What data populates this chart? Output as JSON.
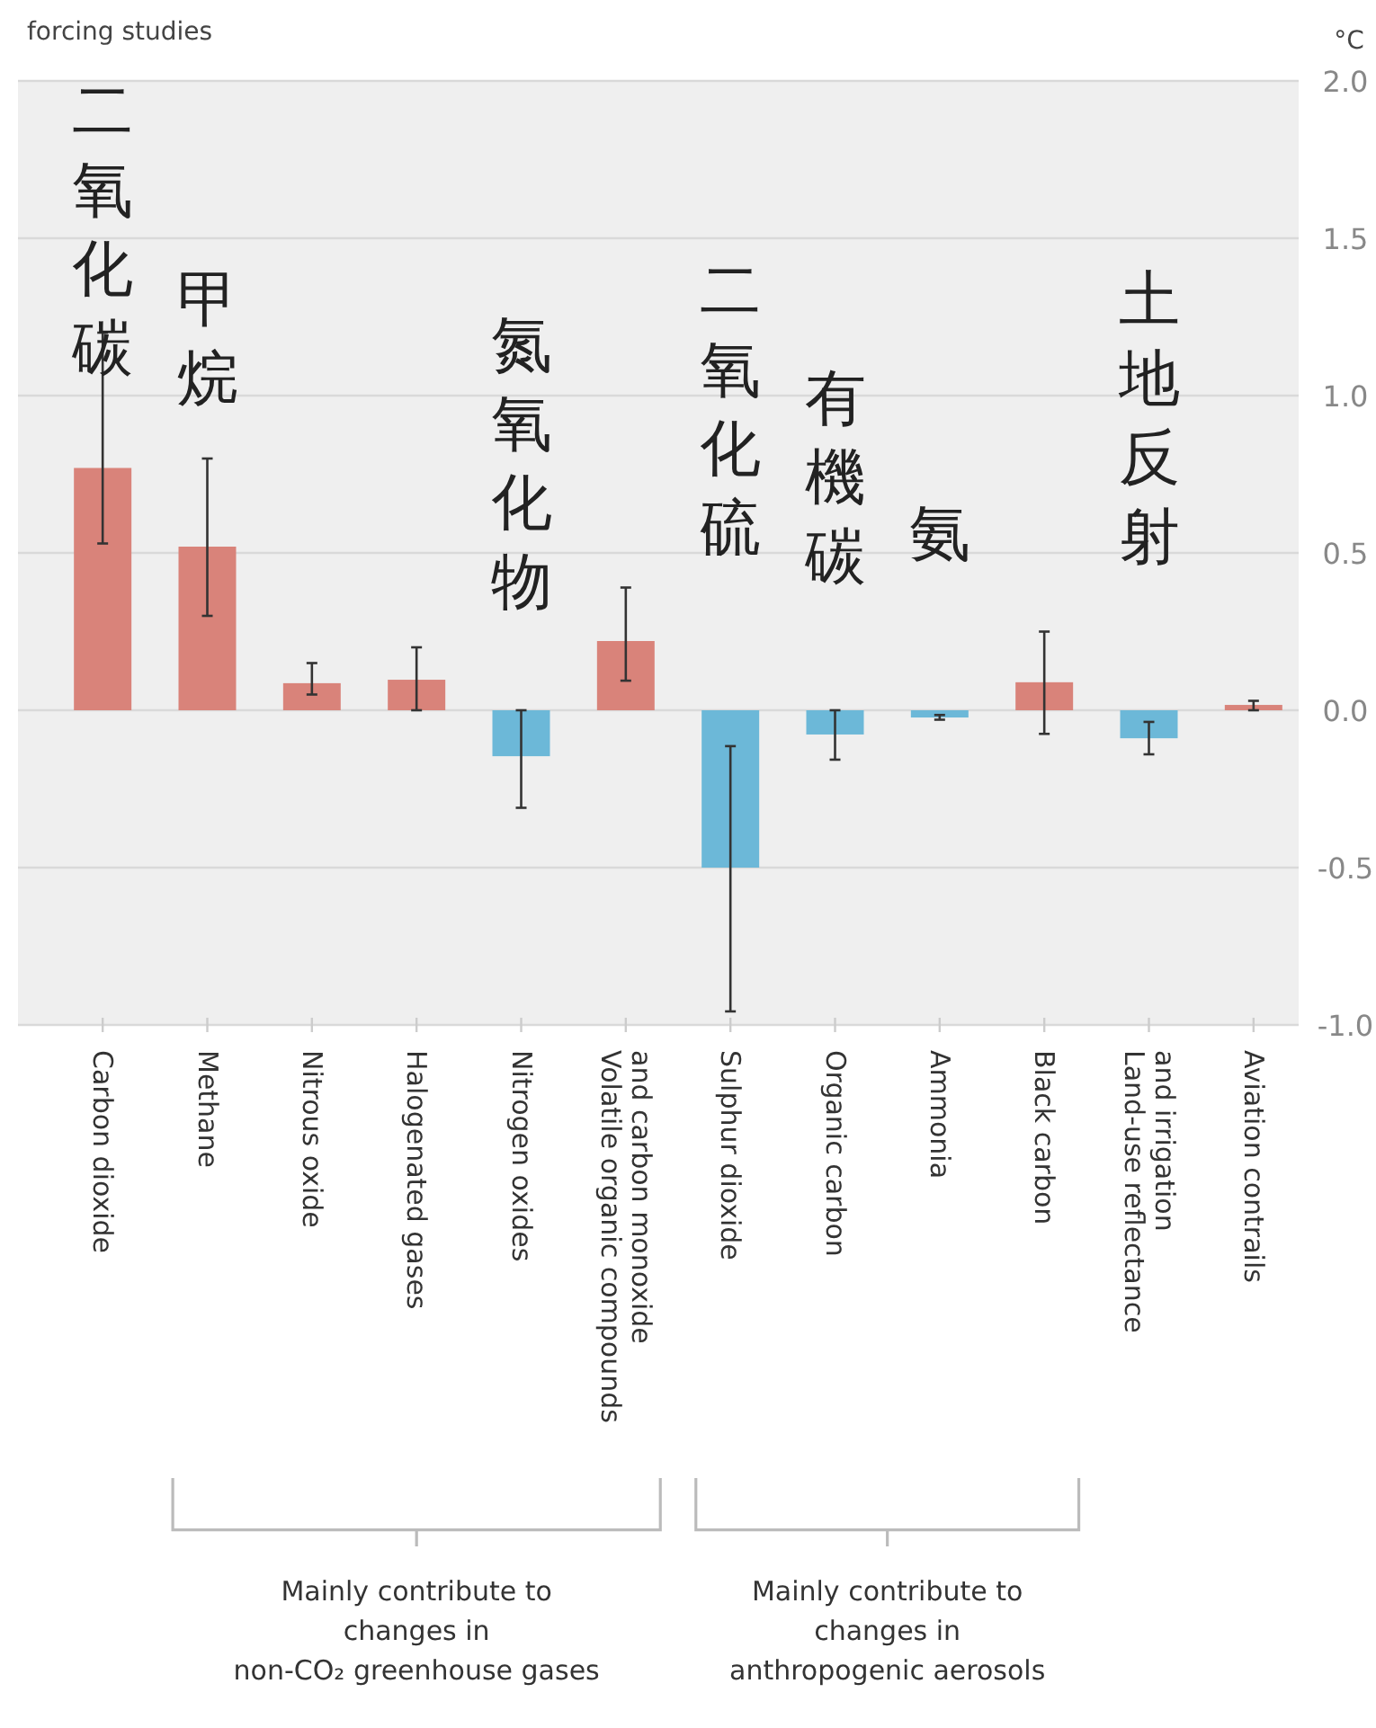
{
  "chart_data": {
    "type": "bar",
    "title": "forcing studies",
    "ylabel": "°C",
    "categories": [
      "Carbon dioxide",
      "Methane",
      "Nitrous oxide",
      "Halogenated gases",
      "Nitrogen oxides",
      "Volatile organic compounds\nand carbon monoxide",
      "Sulphur dioxide",
      "Organic carbon",
      "Ammonia",
      "Black carbon",
      "Land-use reflectance\nand irrigation",
      "Aviation contrails"
    ],
    "values": [
      0.77,
      0.52,
      0.086,
      0.097,
      -0.146,
      0.22,
      -0.5,
      -0.077,
      -0.023,
      0.089,
      -0.089,
      0.017
    ],
    "colors": [
      "#d9837a",
      "#d9837a",
      "#d9837a",
      "#d9837a",
      "#6cb8d8",
      "#d9837a",
      "#6cb8d8",
      "#6cb8d8",
      "#6cb8d8",
      "#d9837a",
      "#6cb8d8",
      "#d9837a"
    ],
    "errors": [
      [
        0.53,
        1.2
      ],
      [
        0.3,
        0.8
      ],
      [
        0.05,
        0.15
      ],
      [
        0.0,
        0.2
      ],
      [
        -0.31,
        0.0
      ],
      [
        0.094,
        0.39
      ],
      [
        -0.957,
        -0.114
      ],
      [
        -0.157,
        0.0
      ],
      [
        -0.03,
        -0.015
      ],
      [
        -0.075,
        0.25
      ],
      [
        -0.14,
        -0.037
      ],
      [
        0.0,
        0.03
      ]
    ],
    "ylim": [
      -1,
      2
    ],
    "yticks": [
      {
        "value": -1,
        "label": "-1.0"
      },
      {
        "value": -0.5,
        "label": "-0.5"
      },
      {
        "value": 0,
        "label": "0.0"
      },
      {
        "value": 0.5,
        "label": "0.5"
      },
      {
        "value": 1,
        "label": "1.0"
      },
      {
        "value": 1.5,
        "label": "1.5"
      },
      {
        "value": 2,
        "label": "2.0"
      }
    ],
    "grid": "y",
    "annotations": [
      "二氧化碳",
      "甲烷",
      "氮氧化物",
      "二氧化硫",
      "有機碳",
      "氨",
      "土地反射",
      "Mainly contribute to\nchanges in\nnon-CO₂ greenhouse gases",
      "Mainly contribute to\nchanges in\nanthropogenic aerosols"
    ]
  }
}
